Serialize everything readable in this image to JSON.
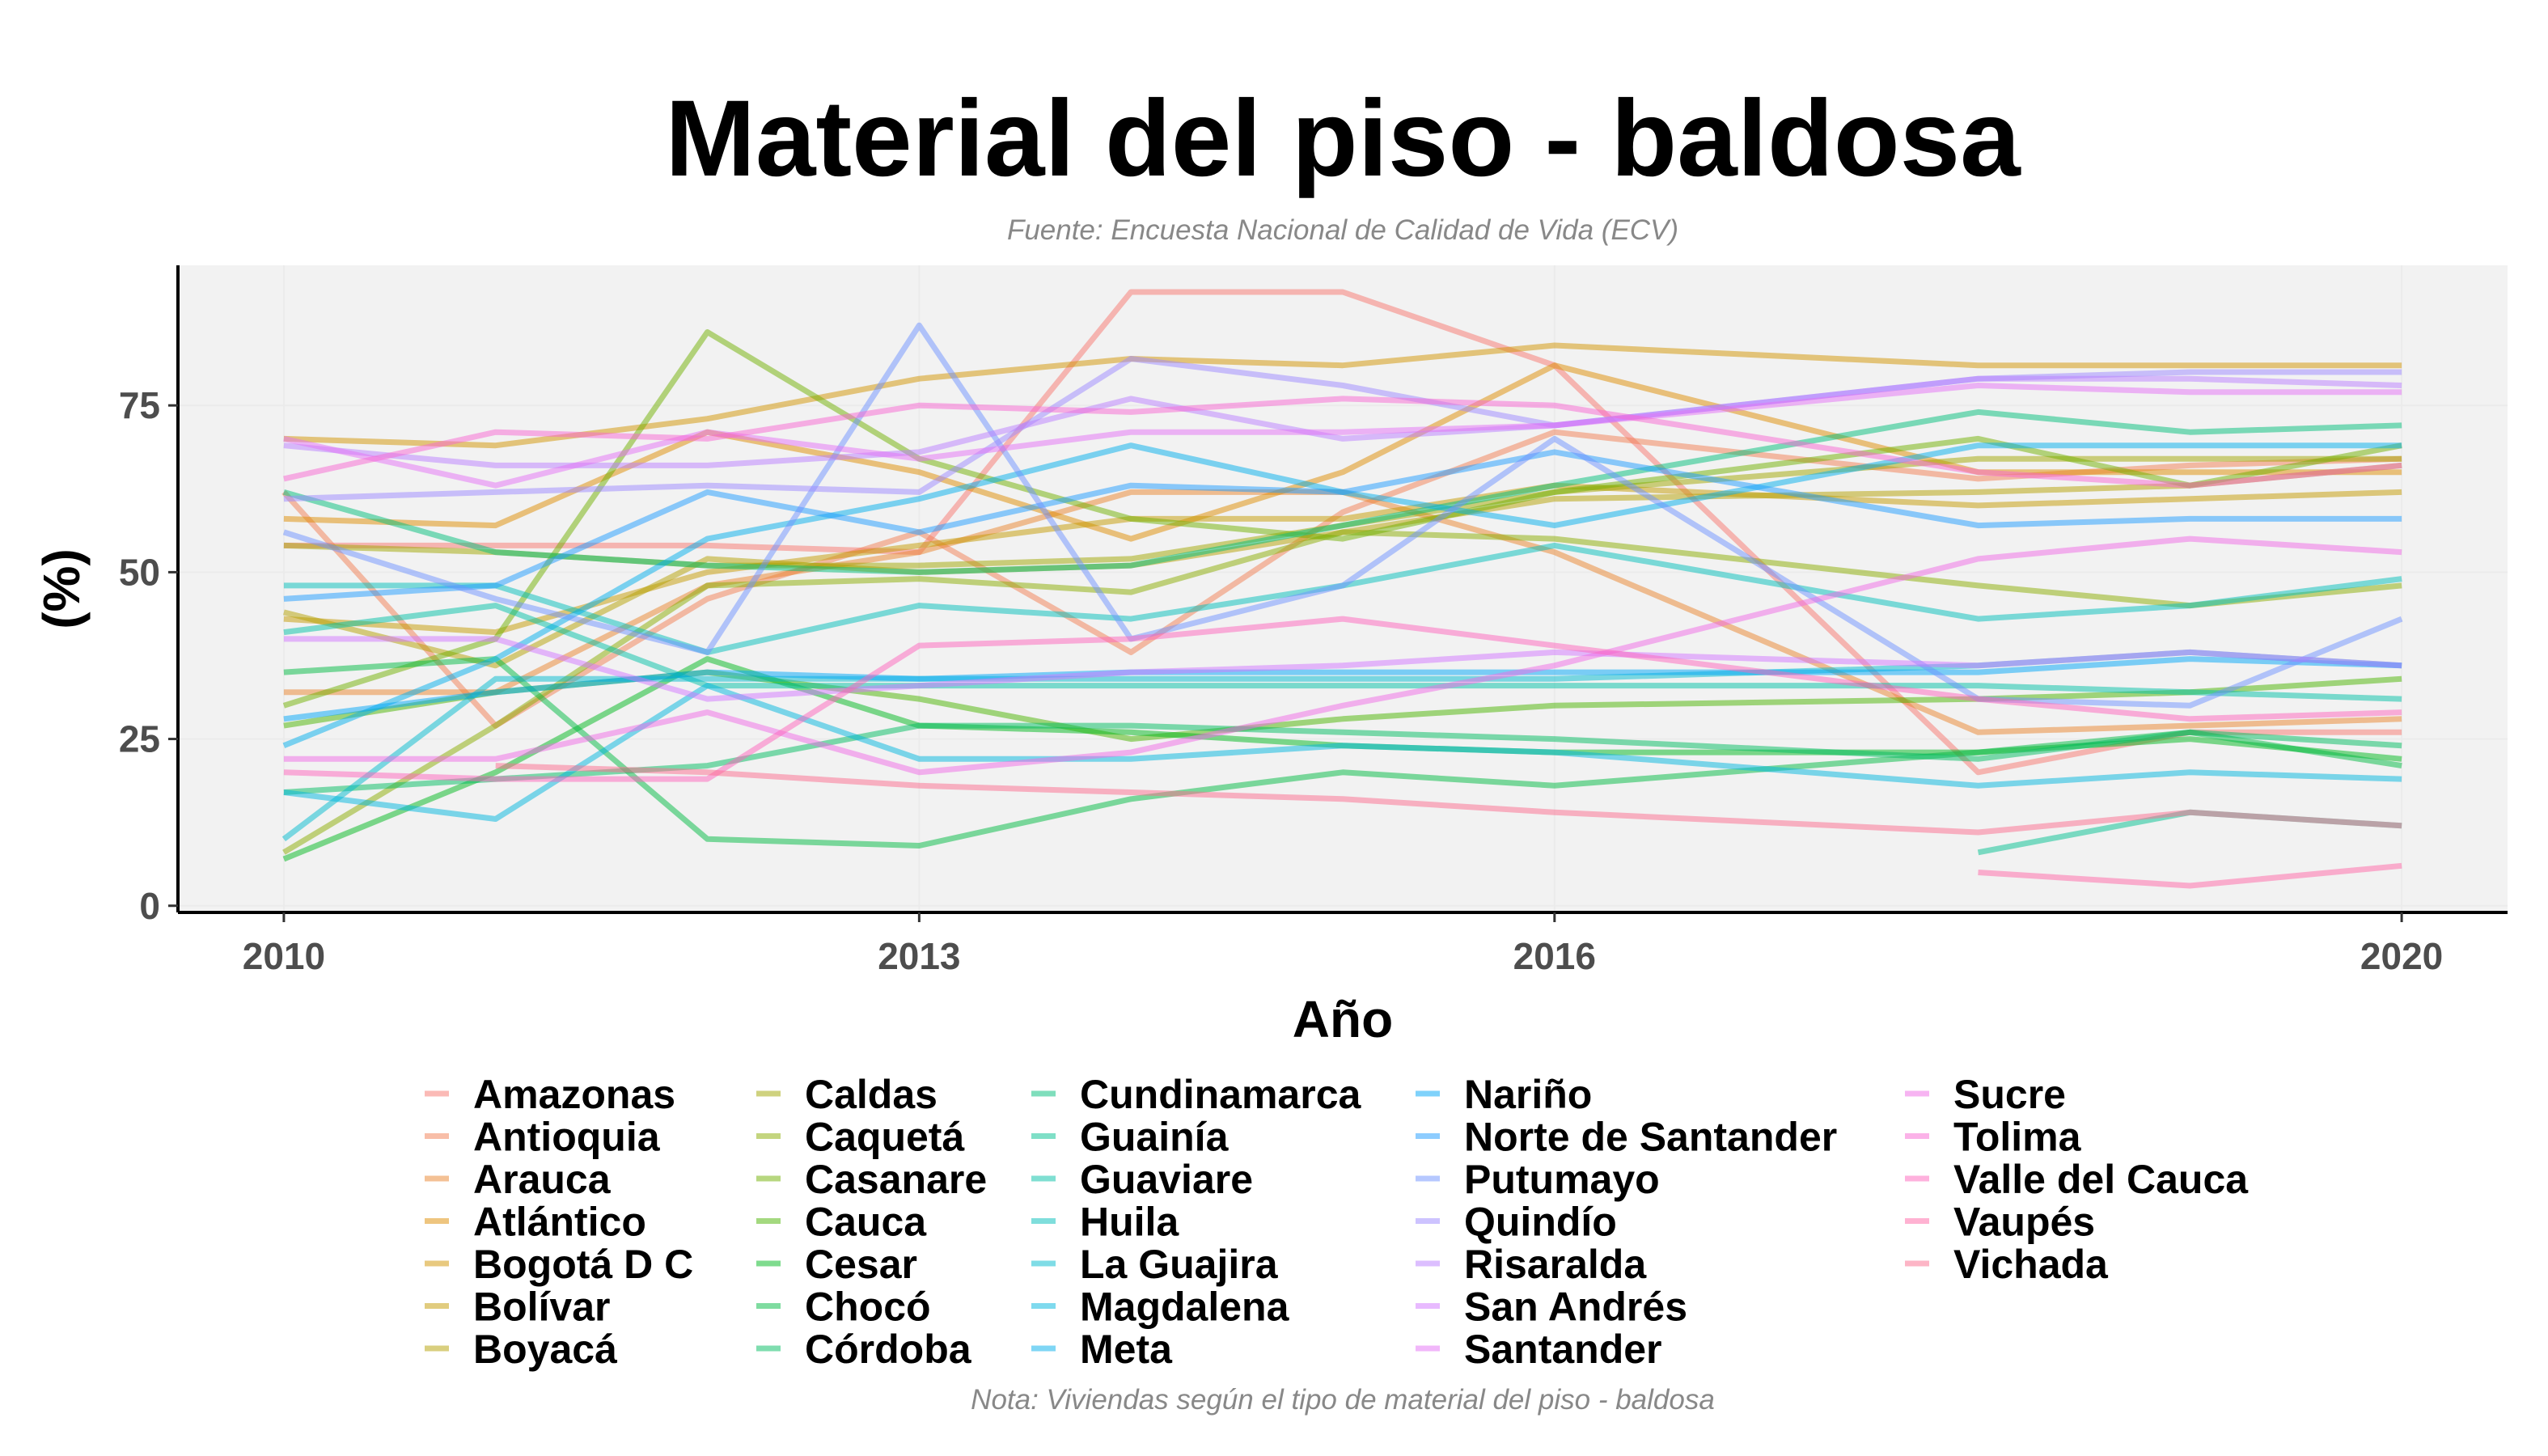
{
  "chart_data": {
    "type": "line",
    "title": "Material del piso - baldosa",
    "subtitle": "Fuente: Encuesta Nacional de Calidad de Vida (ECV)",
    "caption": "Nota: Viviendas según el tipo de material del piso - baldosa",
    "xlabel": "Año",
    "ylabel": "(%)",
    "xlim": [
      2009.5,
      2020.5
    ],
    "ylim": [
      -1,
      96
    ],
    "x_ticks": [
      2010,
      2013,
      2016,
      2020
    ],
    "y_ticks": [
      0,
      25,
      50,
      75
    ],
    "grid": true,
    "legend_position": "bottom",
    "legend_columns": 5,
    "x": [
      2010,
      2011,
      2012,
      2013,
      2014,
      2015,
      2016,
      2018,
      2019,
      2020
    ],
    "series": [
      {
        "name": "Amazonas",
        "color": "#F8766D",
        "values": [
          54,
          54,
          54,
          53,
          92,
          92,
          81,
          20,
          26,
          26
        ]
      },
      {
        "name": "Antioquia",
        "color": "#F27D52",
        "values": [
          62,
          27,
          46,
          56,
          38,
          59,
          71,
          64,
          66,
          67
        ]
      },
      {
        "name": "Arauca",
        "color": "#E9842C",
        "values": [
          32,
          32,
          48,
          53,
          62,
          62,
          53,
          26,
          27,
          28
        ]
      },
      {
        "name": "Atlántico",
        "color": "#DE8C00",
        "values": [
          58,
          57,
          71,
          65,
          55,
          65,
          81,
          65,
          65,
          65
        ]
      },
      {
        "name": "Bogotá D C",
        "color": "#D29300",
        "values": [
          70,
          69,
          73,
          79,
          82,
          81,
          84,
          81,
          81,
          81
        ]
      },
      {
        "name": "Bolívar",
        "color": "#C49A00",
        "values": [
          43,
          41,
          50,
          54,
          58,
          58,
          63,
          60,
          61,
          62
        ]
      },
      {
        "name": "Boyacá",
        "color": "#B3A000",
        "values": [
          44,
          36,
          52,
          50,
          51,
          56,
          61,
          62,
          63,
          66
        ]
      },
      {
        "name": "Caldas",
        "color": "#A0A600",
        "values": [
          54,
          53,
          51,
          51,
          52,
          57,
          62,
          67,
          67,
          67
        ]
      },
      {
        "name": "Caquetá",
        "color": "#8AAB00",
        "values": [
          8,
          27,
          48,
          49,
          47,
          56,
          55,
          48,
          45,
          48
        ]
      },
      {
        "name": "Casanare",
        "color": "#6FB000",
        "values": [
          30,
          40,
          86,
          67,
          58,
          55,
          62,
          70,
          63,
          69
        ]
      },
      {
        "name": "Cauca",
        "color": "#49B400",
        "values": [
          27,
          32,
          35,
          31,
          25,
          28,
          30,
          31,
          32,
          34
        ]
      },
      {
        "name": "Cesar",
        "color": "#00B81E",
        "values": [
          7,
          20,
          37,
          27,
          26,
          24,
          23,
          23,
          25,
          22
        ]
      },
      {
        "name": "Chocó",
        "color": "#00BA42",
        "values": [
          35,
          37,
          10,
          9,
          16,
          20,
          18,
          23,
          26,
          21
        ]
      },
      {
        "name": "Córdoba",
        "color": "#00BC5F",
        "values": [
          17,
          19,
          21,
          27,
          27,
          26,
          25,
          22,
          26,
          24
        ]
      },
      {
        "name": "Cundinamarca",
        "color": "#00BE79",
        "values": [
          62,
          53,
          51,
          50,
          51,
          57,
          63,
          74,
          71,
          72
        ]
      },
      {
        "name": "Guainía",
        "color": "#00BF90",
        "values": [
          null,
          null,
          null,
          null,
          null,
          null,
          null,
          8,
          14,
          12
        ]
      },
      {
        "name": "Guaviare",
        "color": "#00BFA6",
        "values": [
          41,
          45,
          33,
          33,
          33,
          33,
          33,
          33,
          32,
          31
        ]
      },
      {
        "name": "Huila",
        "color": "#00BDBA",
        "values": [
          48,
          48,
          38,
          45,
          43,
          48,
          54,
          43,
          45,
          49
        ]
      },
      {
        "name": "La Guajira",
        "color": "#00BACE",
        "values": [
          10,
          34,
          34,
          34,
          34,
          34,
          34,
          36,
          38,
          36
        ]
      },
      {
        "name": "Magdalena",
        "color": "#00B5DE",
        "values": [
          17,
          13,
          33,
          22,
          22,
          24,
          23,
          18,
          20,
          19
        ]
      },
      {
        "name": "Meta",
        "color": "#00AEEB",
        "values": [
          24,
          37,
          55,
          61,
          69,
          62,
          57,
          69,
          69,
          69
        ]
      },
      {
        "name": "Nariño",
        "color": "#00A6F7",
        "values": [
          28,
          32,
          35,
          34,
          35,
          35,
          35,
          35,
          37,
          36
        ]
      },
      {
        "name": "Norte de Santander",
        "color": "#1E9CFF",
        "values": [
          46,
          48,
          62,
          56,
          63,
          62,
          68,
          57,
          58,
          58
        ]
      },
      {
        "name": "Putumayo",
        "color": "#6E92FF",
        "values": [
          56,
          46,
          38,
          87,
          40,
          48,
          70,
          31,
          30,
          43
        ]
      },
      {
        "name": "Quindío",
        "color": "#9C88FF",
        "values": [
          61,
          62,
          63,
          62,
          82,
          78,
          72,
          79,
          80,
          80
        ]
      },
      {
        "name": "Risaralda",
        "color": "#BA7EFF",
        "values": [
          69,
          66,
          66,
          68,
          76,
          70,
          72,
          79,
          79,
          78
        ]
      },
      {
        "name": "San Andrés",
        "color": "#D176FF",
        "values": [
          40,
          40,
          31,
          33,
          35,
          36,
          38,
          36,
          38,
          36
        ]
      },
      {
        "name": "Santander",
        "color": "#E36FF5",
        "values": [
          70,
          63,
          71,
          67,
          71,
          71,
          72,
          78,
          77,
          77
        ]
      },
      {
        "name": "Sucre",
        "color": "#EF69E5",
        "values": [
          22,
          22,
          29,
          20,
          23,
          30,
          36,
          52,
          55,
          53
        ]
      },
      {
        "name": "Tolima",
        "color": "#F866D2",
        "values": [
          64,
          71,
          70,
          75,
          74,
          76,
          75,
          65,
          63,
          66
        ]
      },
      {
        "name": "Valle del Cauca",
        "color": "#FD64BC",
        "values": [
          20,
          19,
          19,
          39,
          40,
          43,
          39,
          31,
          28,
          29
        ]
      },
      {
        "name": "Vaupés",
        "color": "#FF65A6",
        "values": [
          null,
          null,
          null,
          null,
          null,
          null,
          null,
          5,
          3,
          6
        ]
      },
      {
        "name": "Vichada",
        "color": "#FC6B8E",
        "values": [
          null,
          21,
          20,
          18,
          17,
          16,
          14,
          11,
          14,
          12
        ]
      }
    ]
  }
}
